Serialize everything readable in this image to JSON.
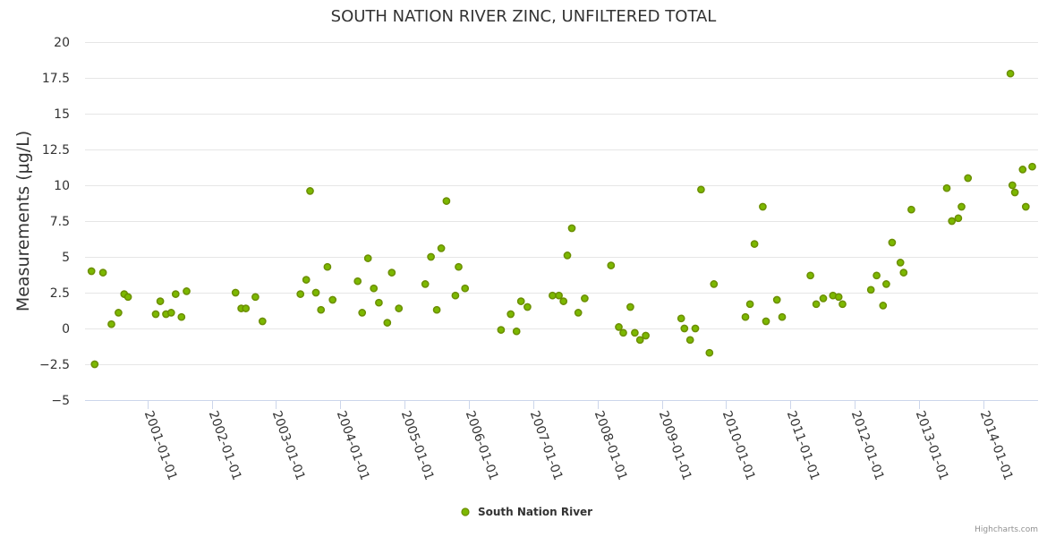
{
  "chart_data": {
    "type": "scatter",
    "title": "SOUTH NATION RIVER ZINC, UNFILTERED TOTAL",
    "xlabel": "",
    "ylabel": "Measurements (µg/L)",
    "ylim": [
      -5,
      20
    ],
    "y_ticks": [
      -5,
      -2.5,
      0,
      2.5,
      5,
      7.5,
      10,
      12.5,
      15,
      17.5,
      20
    ],
    "y_tick_labels": [
      "−5",
      "−2.5",
      "0",
      "2.5",
      "5",
      "7.5",
      "10",
      "12.5",
      "15",
      "17.5",
      "20"
    ],
    "x_range": [
      2000.03,
      2014.85
    ],
    "x_ticks": [
      2001,
      2002,
      2003,
      2004,
      2005,
      2006,
      2007,
      2008,
      2009,
      2010,
      2011,
      2012,
      2013,
      2014
    ],
    "x_tick_labels": [
      "2001-01-01",
      "2002-01-01",
      "2003-01-01",
      "2004-01-01",
      "2005-01-01",
      "2006-01-01",
      "2007-01-01",
      "2008-01-01",
      "2009-01-01",
      "2010-01-01",
      "2011-01-01",
      "2012-01-01",
      "2013-01-01",
      "2014-01-01"
    ],
    "grid": true,
    "legend_position": "bottom-center",
    "series": [
      {
        "name": "South Nation River",
        "color": "#7cb800",
        "x": [
          2000.13,
          2000.18,
          2000.31,
          2000.44,
          2000.55,
          2000.64,
          2000.7,
          2001.13,
          2001.2,
          2001.29,
          2001.37,
          2001.44,
          2001.53,
          2001.61,
          2002.37,
          2002.46,
          2002.53,
          2002.68,
          2002.79,
          2003.38,
          2003.47,
          2003.53,
          2003.62,
          2003.7,
          2003.8,
          2003.88,
          2004.27,
          2004.34,
          2004.43,
          2004.52,
          2004.6,
          2004.73,
          2004.8,
          2004.91,
          2005.32,
          2005.41,
          2005.5,
          2005.57,
          2005.65,
          2005.79,
          2005.84,
          2005.94,
          2006.5,
          2006.65,
          2006.74,
          2006.81,
          2006.91,
          2007.3,
          2007.4,
          2007.47,
          2007.53,
          2007.6,
          2007.7,
          2007.8,
          2008.21,
          2008.33,
          2008.4,
          2008.51,
          2008.58,
          2008.66,
          2008.75,
          2009.3,
          2009.35,
          2009.44,
          2009.52,
          2009.61,
          2009.74,
          2009.81,
          2010.3,
          2010.37,
          2010.44,
          2010.57,
          2010.62,
          2010.79,
          2010.87,
          2011.31,
          2011.4,
          2011.51,
          2011.66,
          2011.75,
          2011.81,
          2012.25,
          2012.34,
          2012.44,
          2012.49,
          2012.58,
          2012.71,
          2012.76,
          2012.88,
          2013.43,
          2013.51,
          2013.61,
          2013.66,
          2013.76,
          2014.42,
          2014.45,
          2014.49,
          2014.61,
          2014.66,
          2014.76
        ],
        "y": [
          4.0,
          -2.5,
          3.9,
          0.3,
          1.1,
          2.4,
          2.2,
          1.0,
          1.9,
          1.0,
          1.1,
          2.4,
          0.8,
          2.6,
          2.5,
          1.4,
          1.4,
          2.2,
          0.5,
          2.4,
          3.4,
          9.6,
          2.5,
          1.3,
          4.3,
          2.0,
          3.3,
          1.1,
          4.9,
          2.8,
          1.8,
          0.4,
          3.9,
          1.4,
          3.1,
          5.0,
          1.3,
          5.6,
          8.9,
          2.3,
          4.3,
          2.8,
          -0.1,
          1.0,
          -0.2,
          1.9,
          1.5,
          2.3,
          2.3,
          1.9,
          5.1,
          7.0,
          1.1,
          2.1,
          4.4,
          0.1,
          -0.3,
          1.5,
          -0.3,
          -0.8,
          -0.5,
          0.7,
          0.0,
          -0.8,
          0.0,
          9.7,
          -1.7,
          3.1,
          0.8,
          1.7,
          5.9,
          8.5,
          0.5,
          2.0,
          0.8,
          3.7,
          1.7,
          2.1,
          2.3,
          2.2,
          1.7,
          2.7,
          3.7,
          1.6,
          3.1,
          6.0,
          4.6,
          3.9,
          8.3,
          9.8,
          7.5,
          7.7,
          8.5,
          10.5,
          17.8,
          10.0,
          9.5,
          11.1,
          8.5,
          11.3
        ]
      }
    ]
  },
  "legend": {
    "label": "South Nation River"
  },
  "credits": {
    "text": "Highcharts.com"
  }
}
